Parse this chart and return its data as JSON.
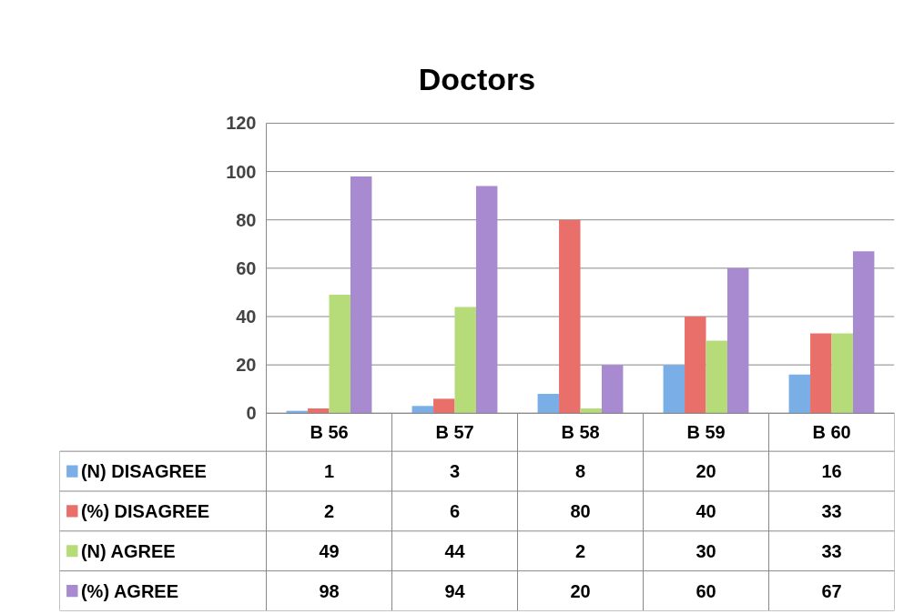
{
  "chart_data": {
    "type": "bar",
    "title": "Doctors",
    "categories": [
      "B 56",
      "B 57",
      "B 58",
      "B 59",
      "B 60"
    ],
    "series": [
      {
        "name": "(N) DISAGREE",
        "color": "#7aaee6",
        "values": [
          1,
          3,
          8,
          20,
          16
        ]
      },
      {
        "name": "(%) DISAGREE",
        "color": "#e9706a",
        "values": [
          2,
          6,
          80,
          40,
          33
        ]
      },
      {
        "name": "(N) AGREE",
        "color": "#b5dc78",
        "values": [
          49,
          44,
          2,
          30,
          33
        ]
      },
      {
        "name": "(%) AGREE",
        "color": "#a88ad0",
        "values": [
          98,
          94,
          20,
          60,
          67
        ]
      }
    ],
    "ylim": [
      0,
      120
    ],
    "yticks": [
      0,
      20,
      40,
      60,
      80,
      100,
      120
    ],
    "grid": "y",
    "legend": "bottom",
    "data_labels": true
  }
}
